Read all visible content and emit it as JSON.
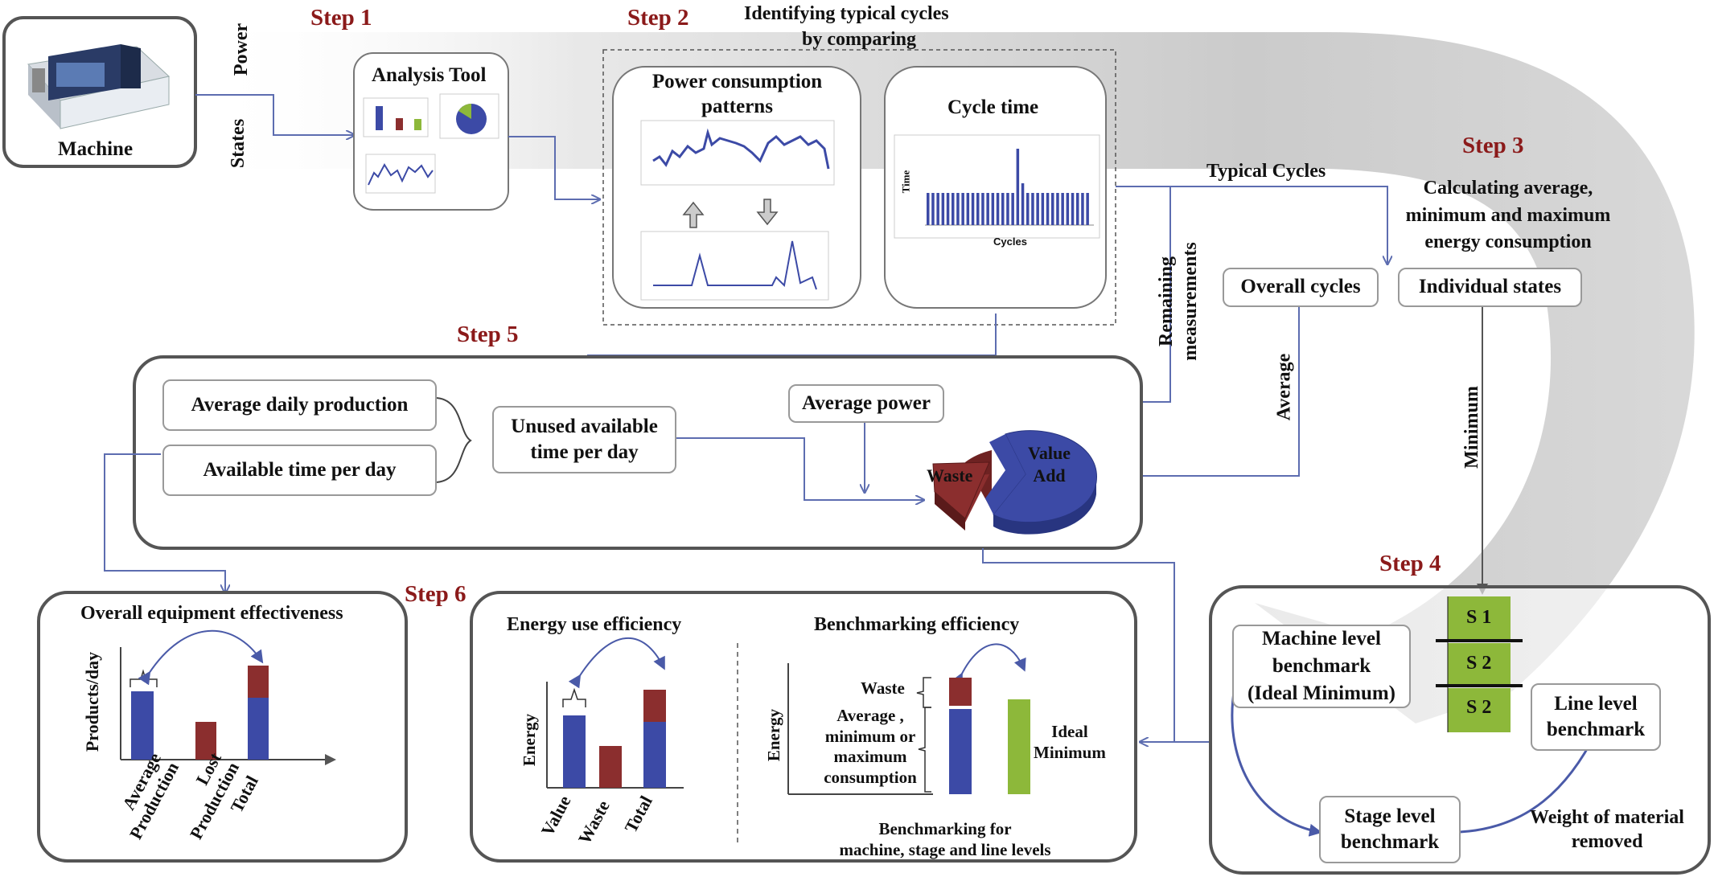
{
  "steps": {
    "s1": "Step 1",
    "s2": "Step 2",
    "s3": "Step 3",
    "s4": "Step 4",
    "s5": "Step 5",
    "s6": "Step 6"
  },
  "machine": {
    "label": "Machine",
    "power": "Power",
    "states": "States"
  },
  "analysis_tool": {
    "title": "Analysis Tool"
  },
  "step2": {
    "header_line1": "Identifying typical cycles",
    "header_line2": "by comparing",
    "power_title_line1": "Power consumption",
    "power_title_line2": "patterns",
    "cycle_title": "Cycle time",
    "cycle_ylabel": "Time",
    "cycle_xlabel": "Cycles"
  },
  "step3": {
    "typical_cycles": "Typical Cycles",
    "calc_line1": "Calculating average,",
    "calc_line2": "minimum  and maximum",
    "calc_line3": "energy consumption",
    "overall_cycles": "Overall cycles",
    "individual_states": "Individual states",
    "remaining_line1": "Remaining",
    "remaining_line2": "measurements",
    "average": "Average",
    "minimum": "Minimum"
  },
  "step5": {
    "avg_daily": "Average daily  production",
    "available_time": "Available  time per day",
    "unused_line1": "Unused available",
    "unused_line2": "time per day",
    "average_power": "Average power",
    "waste": "Waste",
    "value_add_line1": "Value",
    "value_add_line2": "Add"
  },
  "step4": {
    "machine_bm_line1": "Machine level",
    "machine_bm_line2": "benchmark",
    "machine_bm_line3": "(Ideal Minimum)",
    "states": [
      "S 1",
      "S 2",
      "S 2"
    ],
    "line_bm_line1": "Line level",
    "line_bm_line2": "benchmark",
    "stage_bm_line1": "Stage level",
    "stage_bm_line2": "benchmark",
    "weight_line1": "Weight of material",
    "weight_line2": "removed"
  },
  "oee": {
    "title": "Overall equipment  effectiveness",
    "ylabel": "Products/day",
    "cat1_line1": "Average",
    "cat1_line2": "Production",
    "cat2_line1": "Lost",
    "cat2_line2": "Production",
    "cat3": "Total"
  },
  "energy_eff": {
    "title": "Energy use efficiency",
    "ylabel": "Energy",
    "cat1": "Value",
    "cat2": "Waste",
    "cat3": "Total"
  },
  "benchmark_eff": {
    "title": "Benchmarking  efficiency",
    "ylabel": "Energy",
    "waste": "Waste",
    "avg_line1": "Average ,",
    "avg_line2": "minimum or",
    "avg_line3": "maximum",
    "avg_line4": "consumption",
    "ideal_line1": "Ideal",
    "ideal_line2": "Minimum",
    "footer_line1": "Benchmarking for",
    "footer_line2": "machine, stage and  line levels"
  },
  "colors": {
    "blue": "#3c4aa6",
    "maroon": "#8b2e2e",
    "green": "#8db83a",
    "step_red": "#8b1a1a",
    "arrow_blue": "#5d6db0"
  }
}
